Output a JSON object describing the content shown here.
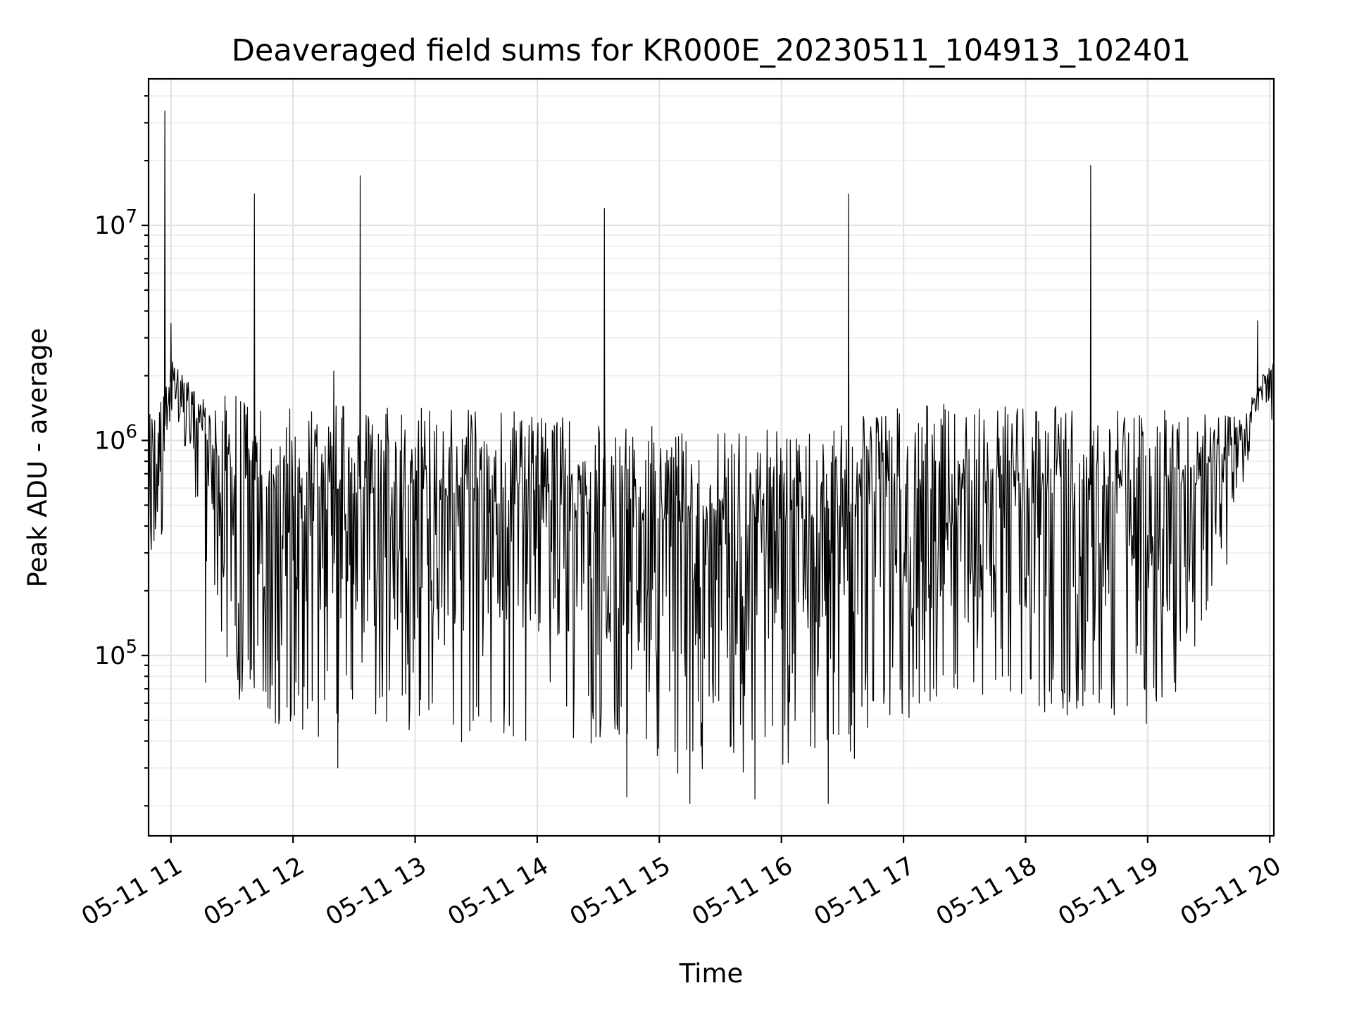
{
  "chart_data": {
    "type": "line",
    "title": "Deaveraged field sums for KR000E_20230511_104913_102401",
    "xlabel": "Time",
    "ylabel": "Peak ADU - average",
    "xscale": "time",
    "yscale": "log",
    "xlim": [
      "2023-05-11T10:49:00",
      "2023-05-11T20:02:00"
    ],
    "ylim": [
      14500,
      48000000
    ],
    "grid": true,
    "line_color": "#000000",
    "x_ticks": [
      {
        "value": "2023-05-11T11:00:00",
        "label": "05-11 11"
      },
      {
        "value": "2023-05-11T12:00:00",
        "label": "05-11 12"
      },
      {
        "value": "2023-05-11T13:00:00",
        "label": "05-11 13"
      },
      {
        "value": "2023-05-11T14:00:00",
        "label": "05-11 14"
      },
      {
        "value": "2023-05-11T15:00:00",
        "label": "05-11 15"
      },
      {
        "value": "2023-05-11T16:00:00",
        "label": "05-11 16"
      },
      {
        "value": "2023-05-11T17:00:00",
        "label": "05-11 17"
      },
      {
        "value": "2023-05-11T18:00:00",
        "label": "05-11 18"
      },
      {
        "value": "2023-05-11T19:00:00",
        "label": "05-11 19"
      },
      {
        "value": "2023-05-11T20:00:00",
        "label": "05-11 20"
      }
    ],
    "y_ticks": [
      {
        "value": 100000,
        "base": "10",
        "exp": "5"
      },
      {
        "value": 1000000,
        "base": "10",
        "exp": "6"
      },
      {
        "value": 10000000,
        "base": "10",
        "exp": "7"
      }
    ],
    "envelope": [
      {
        "x": "2023-05-11T10:49:00",
        "low": 250000,
        "high": 1750000
      },
      {
        "x": "2023-05-11T10:55:00",
        "low": 330000,
        "high": 1500000
      },
      {
        "x": "2023-05-11T11:00:00",
        "low": 900000,
        "high": 2400000
      },
      {
        "x": "2023-05-11T11:06:00",
        "low": 1000000,
        "high": 2050000
      },
      {
        "x": "2023-05-11T11:12:00",
        "low": 500000,
        "high": 1700000
      },
      {
        "x": "2023-05-11T11:20:00",
        "low": 200000,
        "high": 1650000
      },
      {
        "x": "2023-05-11T11:30:00",
        "low": 65000,
        "high": 1700000
      },
      {
        "x": "2023-05-11T11:40:00",
        "low": 50000,
        "high": 1600000
      },
      {
        "x": "2023-05-11T11:55:00",
        "low": 38000,
        "high": 1500000
      },
      {
        "x": "2023-05-11T12:10:00",
        "low": 40000,
        "high": 1450000
      },
      {
        "x": "2023-05-11T12:30:00",
        "low": 42000,
        "high": 1450000
      },
      {
        "x": "2023-05-11T13:00:00",
        "low": 40000,
        "high": 1450000
      },
      {
        "x": "2023-05-11T13:30:00",
        "low": 38000,
        "high": 1400000
      },
      {
        "x": "2023-05-11T14:00:00",
        "low": 36000,
        "high": 1350000
      },
      {
        "x": "2023-05-11T14:30:00",
        "low": 32000,
        "high": 1250000
      },
      {
        "x": "2023-05-11T15:00:00",
        "low": 27000,
        "high": 1150000
      },
      {
        "x": "2023-05-11T15:30:00",
        "low": 25000,
        "high": 1100000
      },
      {
        "x": "2023-05-11T16:00:00",
        "low": 27000,
        "high": 1150000
      },
      {
        "x": "2023-05-11T16:30:00",
        "low": 30000,
        "high": 1250000
      },
      {
        "x": "2023-05-11T17:00:00",
        "low": 45000,
        "high": 1450000
      },
      {
        "x": "2023-05-11T17:30:00",
        "low": 55000,
        "high": 1500000
      },
      {
        "x": "2023-05-11T18:00:00",
        "low": 50000,
        "high": 1450000
      },
      {
        "x": "2023-05-11T18:30:00",
        "low": 50000,
        "high": 1450000
      },
      {
        "x": "2023-05-11T19:00:00",
        "low": 45000,
        "high": 1400000
      },
      {
        "x": "2023-05-11T19:20:00",
        "low": 50000,
        "high": 1400000
      },
      {
        "x": "2023-05-11T19:35:00",
        "low": 150000,
        "high": 1400000
      },
      {
        "x": "2023-05-11T19:45:00",
        "low": 400000,
        "high": 1300000
      },
      {
        "x": "2023-05-11T19:52:00",
        "low": 1100000,
        "high": 1700000
      },
      {
        "x": "2023-05-11T20:02:00",
        "low": 1200000,
        "high": 2500000
      }
    ],
    "spikes": [
      {
        "x": "2023-05-11T10:57:00",
        "y": 34000000
      },
      {
        "x": "2023-05-11T11:41:00",
        "y": 14000000
      },
      {
        "x": "2023-05-11T12:33:00",
        "y": 17000000
      },
      {
        "x": "2023-05-11T14:33:00",
        "y": 12000000
      },
      {
        "x": "2023-05-11T16:33:00",
        "y": 14000000
      },
      {
        "x": "2023-05-11T18:32:00",
        "y": 19000000
      },
      {
        "x": "2023-05-11T19:54:00",
        "y": 3600000
      },
      {
        "x": "2023-05-11T12:20:00",
        "y": 2100000
      },
      {
        "x": "2023-05-11T11:00:00",
        "y": 3500000
      }
    ],
    "dips": [
      {
        "x": "2023-05-11T11:17:00",
        "y": 75000
      },
      {
        "x": "2023-05-11T12:22:00",
        "y": 30000
      },
      {
        "x": "2023-05-11T14:44:00",
        "y": 22000
      },
      {
        "x": "2023-05-11T15:15:00",
        "y": 20500
      },
      {
        "x": "2023-05-11T15:47:00",
        "y": 21500
      },
      {
        "x": "2023-05-11T16:23:00",
        "y": 20500
      }
    ]
  }
}
